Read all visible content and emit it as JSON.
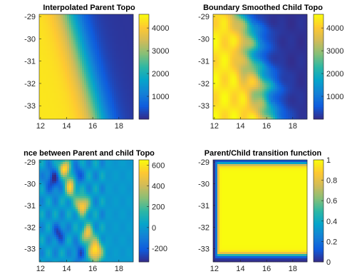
{
  "chart_data": [
    {
      "type": "heatmap",
      "title": "Interpolated Parent Topo",
      "xticks": [
        12,
        14,
        16,
        18
      ],
      "yticks": [
        -29,
        -30,
        -31,
        -32,
        -33
      ],
      "xlim": [
        11.9,
        19.1
      ],
      "ylim": [
        -33.6,
        -28.9
      ],
      "clim": [
        0,
        4600
      ],
      "colorbar_ticks": [
        1000,
        2000,
        3000,
        4000
      ],
      "colormap": "parula",
      "field": "smooth shelf-to-ocean slope: ~4200 at west falling to ~0 east of a NW-SE front near lon 14.5-16.5"
    },
    {
      "type": "heatmap",
      "title": "Boundary Smoothed Child Topo",
      "xticks": [
        12,
        14,
        16,
        18
      ],
      "yticks": [
        -29,
        -30,
        -31,
        -32,
        -33
      ],
      "xlim": [
        11.9,
        19.1
      ],
      "ylim": [
        -33.6,
        -28.9
      ],
      "clim": [
        0,
        4600
      ],
      "colorbar_ticks": [
        1000,
        2000,
        3000,
        4000
      ],
      "colormap": "parula",
      "field": "finer-resolution version of parent topo with detailed ridge and valley structure"
    },
    {
      "type": "heatmap",
      "title": "nce between Parent and child Topo",
      "xticks": [
        12,
        14,
        16,
        18
      ],
      "yticks": [
        -29,
        -30,
        -31,
        -32,
        -33
      ],
      "xlim": [
        11.9,
        19.1
      ],
      "ylim": [
        -33.6,
        -28.9
      ],
      "clim": [
        -330,
        650
      ],
      "colorbar_ticks": [
        -200,
        0,
        200,
        400,
        600
      ],
      "colormap": "parula",
      "field": "difference field near 0 with positive blobs (~500-650) along a diagonal from (13.7,-29.2) to (16.2,-33.1)"
    },
    {
      "type": "heatmap",
      "title": "Parent/Child transition function",
      "xticks": [
        12,
        14,
        16,
        18
      ],
      "yticks": [
        -29,
        -30,
        -31,
        -32,
        -33
      ],
      "xlim": [
        11.9,
        19.1
      ],
      "ylim": [
        -33.6,
        -28.9
      ],
      "clim": [
        0,
        1
      ],
      "colorbar_ticks": [
        0,
        0.2,
        0.4,
        0.6,
        0.8,
        1
      ],
      "colormap": "parula",
      "field": "value 1 in the interior, ramping to 0 over a narrow border on the north, west and south sides"
    }
  ],
  "colors": {
    "parula": [
      "#352a87",
      "#0f5cdd",
      "#1481d6",
      "#06a4ca",
      "#2eb7a4",
      "#87bf77",
      "#d1bb59",
      "#fec832",
      "#f9fb0e"
    ]
  }
}
